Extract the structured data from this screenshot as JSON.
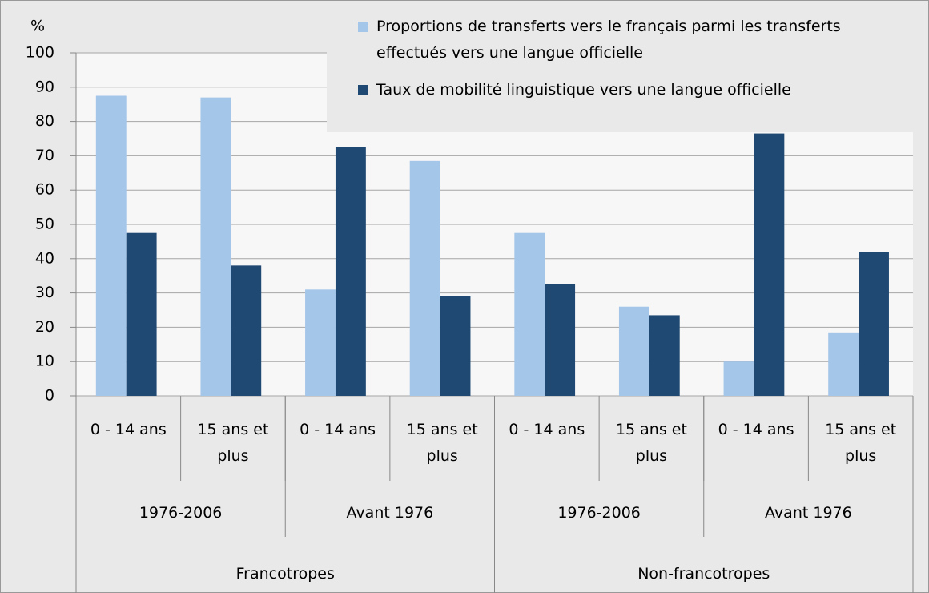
{
  "chart_data": {
    "type": "bar",
    "ylabel": "%",
    "categories": [
      "0 - 14 ans",
      "15 ans et plus",
      "0 - 14 ans",
      "15 ans et plus",
      "0 - 14 ans",
      "15 ans et plus",
      "0 - 14 ans",
      "15 ans et plus"
    ],
    "periods": [
      "1976-2006",
      "Avant 1976",
      "1976-2006",
      "Avant 1976"
    ],
    "groups": [
      "Francotropes",
      "Non-francotropes"
    ],
    "series": [
      {
        "name": "Proportions de transferts vers le français parmi les transferts effectués vers une langue officielle",
        "color": "#a4c6e9",
        "values": [
          87.5,
          87,
          31,
          68.5,
          47.5,
          26,
          10,
          18.5
        ]
      },
      {
        "name": "Taux de mobilité linguistique vers une langue officielle",
        "color": "#1f4872",
        "values": [
          47.5,
          38,
          72.5,
          29,
          32.5,
          23.5,
          76.5,
          42
        ]
      }
    ],
    "ylim": [
      0,
      100
    ],
    "yticks": [
      0,
      10,
      20,
      30,
      40,
      50,
      60,
      70,
      80,
      90,
      100
    ],
    "grid": true,
    "legend": "top-right"
  }
}
